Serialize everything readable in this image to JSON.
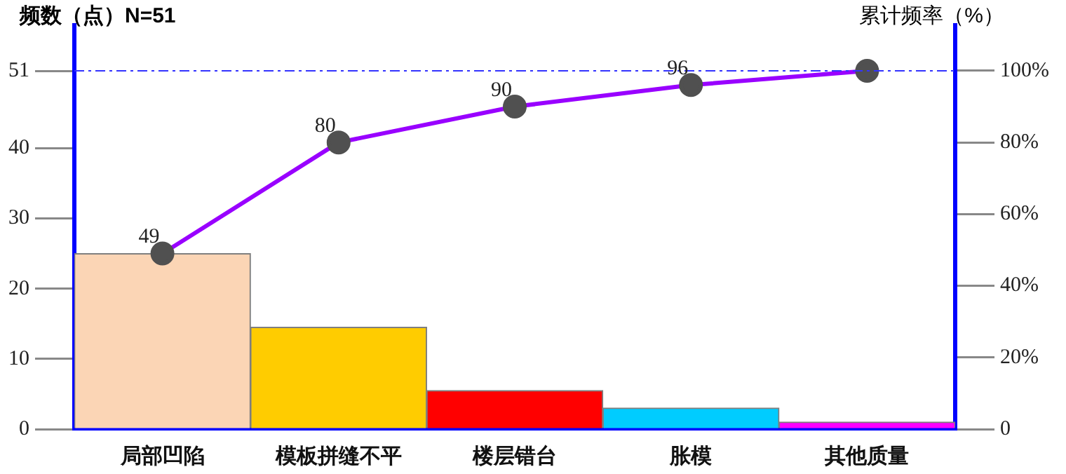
{
  "chart_data": {
    "type": "bar",
    "ylabel": "频数（点）N=51",
    "y2label": "累计频率（%）",
    "categories": [
      "局部凹陷",
      "模板拼缝不平",
      "楼层错台",
      "胀模",
      "其他质量"
    ],
    "series": [
      {
        "colors": [
          "#fbd5b5",
          "#ffcc00",
          "#ff0000",
          "#00ccff",
          "#ff00ff"
        ],
        "values": [
          25,
          14.5,
          5.5,
          3,
          1
        ]
      },
      {
        "type": "line",
        "axis": "y2",
        "color": "#9900ff",
        "values": [
          49,
          80,
          90,
          96,
          100
        ],
        "value_labels": [
          "49",
          "80",
          "90",
          "96",
          null
        ]
      }
    ],
    "ylim": [
      0,
      57.5
    ],
    "yticks": [
      0,
      10,
      20,
      30,
      40,
      51
    ],
    "y2lim": [
      0,
      112.7
    ],
    "y2ticks": [
      {
        "value": 0,
        "label": "0"
      },
      {
        "value": 20,
        "label": "20%"
      },
      {
        "value": 40,
        "label": "40%"
      },
      {
        "value": 60,
        "label": "60%"
      },
      {
        "value": 80,
        "label": "80%"
      },
      {
        "value": 100,
        "label": "100%"
      }
    ],
    "ref_lines": [
      {
        "axis": "y",
        "value": 51,
        "color": "#3333ff",
        "line_style": "dashed"
      }
    ],
    "grid": false,
    "legend": false,
    "marker": "circle",
    "line_style": "solid"
  }
}
